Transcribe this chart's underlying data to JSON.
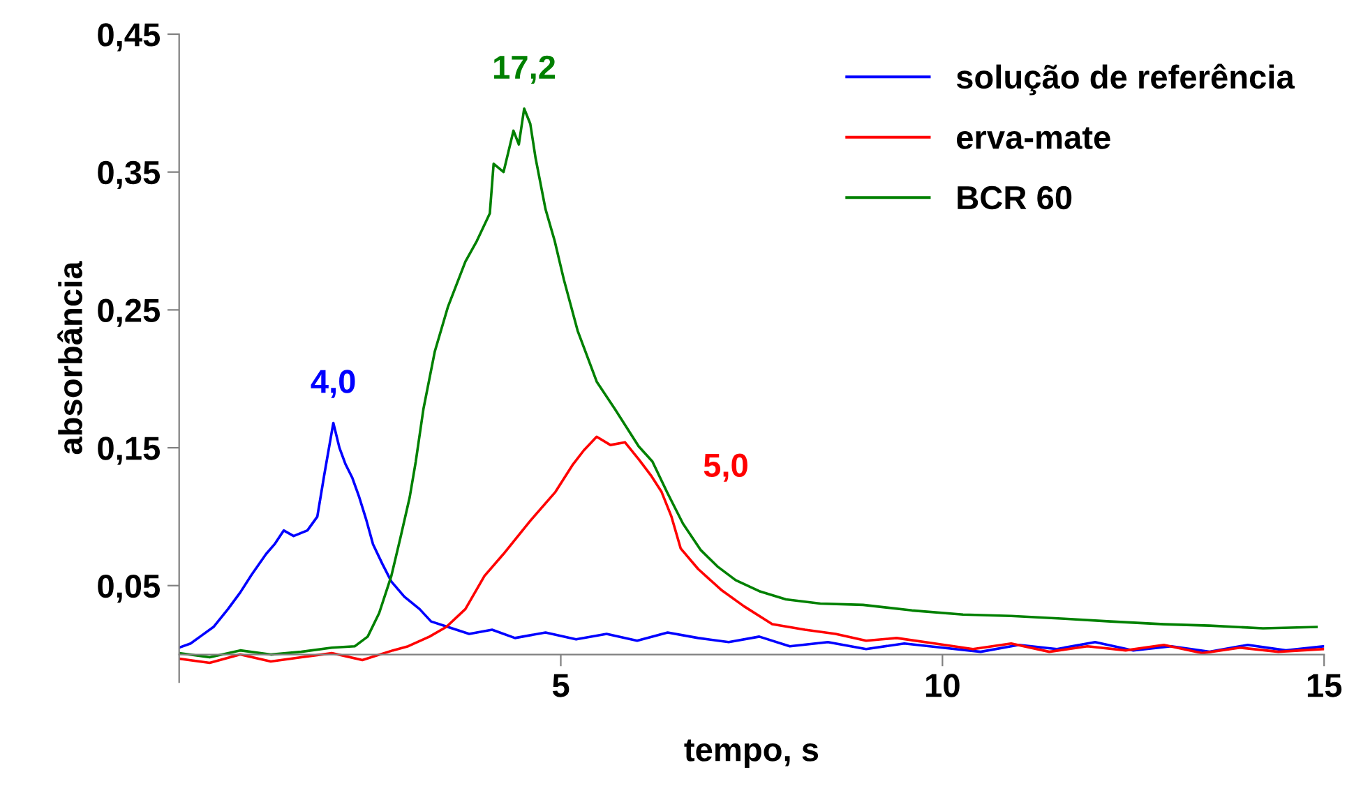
{
  "chart_data": {
    "type": "line",
    "xlabel": "tempo, s",
    "ylabel": "absorbância",
    "xlim": [
      0,
      15
    ],
    "ylim": [
      -0.02,
      0.45
    ],
    "xticks": [
      5,
      10,
      15
    ],
    "yticks": [
      {
        "value": 0.05,
        "label": "0,05"
      },
      {
        "value": 0.15,
        "label": "0,15"
      },
      {
        "value": 0.25,
        "label": "0,25"
      },
      {
        "value": 0.35,
        "label": "0,35"
      },
      {
        "value": 0.45,
        "label": "0,45"
      }
    ],
    "grid": false,
    "legend": "top right",
    "marker": "none",
    "line_style": "solid",
    "annotations": [
      {
        "text": "4,0",
        "x": 2.02,
        "y": 0.168
      },
      {
        "text": "5,0",
        "x": 6.4,
        "y": 0.11
      },
      {
        "text": "17,2",
        "x": 4.52,
        "y": 0.396
      }
    ],
    "series": [
      {
        "name": "solução de referência",
        "color": "#0000ff",
        "x": [
          0,
          0.15,
          0.3,
          0.45,
          0.64,
          0.8,
          0.95,
          1.14,
          1.25,
          1.37,
          1.5,
          1.68,
          1.81,
          1.9,
          2.02,
          2.1,
          2.18,
          2.27,
          2.36,
          2.45,
          2.54,
          2.66,
          2.78,
          2.95,
          3.15,
          3.3,
          3.52,
          3.8,
          4.1,
          4.4,
          4.8,
          5.2,
          5.6,
          6.0,
          6.4,
          6.8,
          7.2,
          7.6,
          8.0,
          8.5,
          9.0,
          9.5,
          10,
          10.5,
          11,
          11.5,
          12,
          12.5,
          13,
          13.5,
          14,
          14.5,
          15
        ],
        "values": [
          0.005,
          0.008,
          0.014,
          0.02,
          0.033,
          0.045,
          0.058,
          0.073,
          0.08,
          0.09,
          0.086,
          0.09,
          0.1,
          0.13,
          0.168,
          0.15,
          0.138,
          0.128,
          0.114,
          0.098,
          0.08,
          0.066,
          0.053,
          0.042,
          0.033,
          0.024,
          0.02,
          0.015,
          0.018,
          0.012,
          0.016,
          0.011,
          0.015,
          0.01,
          0.016,
          0.012,
          0.009,
          0.013,
          0.006,
          0.009,
          0.004,
          0.008,
          0.005,
          0.002,
          0.007,
          0.004,
          0.009,
          0.003,
          0.006,
          0.002,
          0.007,
          0.003,
          0.006
        ]
      },
      {
        "name": "erva-mate",
        "color": "#ff0000",
        "x": [
          0,
          0.4,
          0.8,
          1.2,
          1.6,
          2.0,
          2.4,
          2.8,
          3.0,
          3.28,
          3.5,
          3.75,
          4.0,
          4.25,
          4.6,
          4.93,
          5.16,
          5.3,
          5.47,
          5.65,
          5.84,
          6.03,
          6.18,
          6.32,
          6.45,
          6.57,
          6.8,
          7.1,
          7.4,
          7.77,
          8.2,
          8.6,
          9.0,
          9.4,
          9.9,
          10.4,
          10.9,
          11.4,
          11.9,
          12.4,
          12.9,
          13.4,
          13.9,
          14.4,
          15
        ],
        "values": [
          -0.003,
          -0.006,
          0.0,
          -0.005,
          -0.002,
          0.001,
          -0.004,
          0.003,
          0.006,
          0.013,
          0.02,
          0.033,
          0.057,
          0.073,
          0.097,
          0.118,
          0.138,
          0.148,
          0.158,
          0.152,
          0.154,
          0.141,
          0.13,
          0.118,
          0.1,
          0.077,
          0.062,
          0.047,
          0.035,
          0.022,
          0.018,
          0.015,
          0.01,
          0.012,
          0.008,
          0.004,
          0.008,
          0.002,
          0.006,
          0.003,
          0.007,
          0.001,
          0.005,
          0.002,
          0.004
        ]
      },
      {
        "name": "BCR 60",
        "color": "#008000",
        "x": [
          0,
          0.4,
          0.8,
          1.2,
          1.6,
          2.0,
          2.3,
          2.47,
          2.62,
          2.78,
          2.9,
          3.02,
          3.1,
          3.2,
          3.35,
          3.52,
          3.75,
          3.9,
          4.07,
          4.12,
          4.25,
          4.38,
          4.45,
          4.52,
          4.6,
          4.67,
          4.8,
          4.92,
          5.04,
          5.22,
          5.47,
          5.71,
          6.02,
          6.2,
          6.39,
          6.6,
          6.83,
          7.05,
          7.29,
          7.6,
          7.95,
          8.4,
          8.96,
          9.6,
          10.27,
          10.9,
          11.6,
          12.2,
          12.9,
          13.5,
          14.2,
          14.9
        ],
        "values": [
          0.001,
          -0.002,
          0.003,
          0.0,
          0.002,
          0.005,
          0.006,
          0.013,
          0.03,
          0.057,
          0.085,
          0.114,
          0.14,
          0.178,
          0.22,
          0.252,
          0.285,
          0.3,
          0.32,
          0.356,
          0.35,
          0.38,
          0.37,
          0.396,
          0.385,
          0.36,
          0.323,
          0.3,
          0.272,
          0.235,
          0.198,
          0.178,
          0.151,
          0.14,
          0.118,
          0.095,
          0.076,
          0.064,
          0.054,
          0.046,
          0.04,
          0.037,
          0.036,
          0.032,
          0.029,
          0.028,
          0.026,
          0.024,
          0.022,
          0.021,
          0.019,
          0.02
        ]
      }
    ]
  }
}
